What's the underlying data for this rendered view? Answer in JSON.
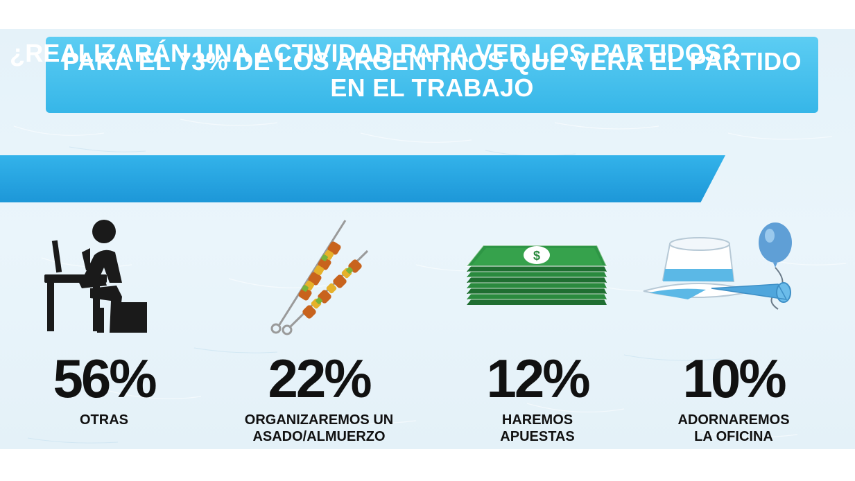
{
  "colors": {
    "banner": "#3dbbea",
    "question_bar": "#29a8e0",
    "text_dark": "#111111",
    "money_green": "#2a8a3e",
    "celeste": "#5bb8e6"
  },
  "banner": {
    "lines": [
      "PARA EL 73% DE LOS ARGENTINOS QUE VERÁ EL PARTIDO",
      "EN EL TRABAJO"
    ]
  },
  "question": "¿REALIZARÁN UNA ACTIVIDAD PARA VER LOS PARTIDOS?",
  "stats": [
    {
      "icon": "person-at-computer-icon",
      "value": 56,
      "percent": "56%",
      "label_lines": [
        "OTRAS"
      ]
    },
    {
      "icon": "barbecue-skewers-icon",
      "value": 22,
      "percent": "22%",
      "label_lines": [
        "ORGANIZAREMOS UN",
        "ASADO/ALMUERZO"
      ]
    },
    {
      "icon": "money-stack-icon",
      "value": 12,
      "percent": "12%",
      "label_lines": [
        "HAREMOS",
        "APUESTAS"
      ]
    },
    {
      "icon": "party-hat-balloon-horn-icon",
      "value": 10,
      "percent": "10%",
      "label_lines": [
        "ADORNAREMOS",
        "LA OFICINA"
      ]
    }
  ]
}
